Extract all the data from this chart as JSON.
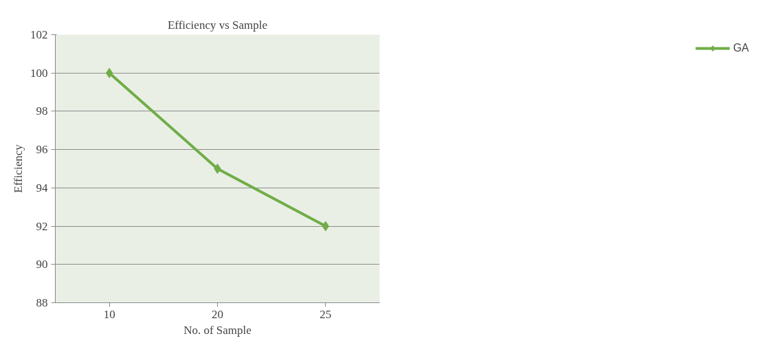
{
  "chart_data": {
    "type": "line",
    "title": "Efficiency vs Sample",
    "xlabel": "No. of Sample",
    "ylabel": "Efficiency",
    "categories": [
      "10",
      "20",
      "25"
    ],
    "series": [
      {
        "name": "GA",
        "color": "#70ad47",
        "values": [
          100,
          95,
          92
        ]
      }
    ],
    "ylim": [
      88,
      102
    ],
    "yticks": [
      88,
      90,
      92,
      94,
      96,
      98,
      100,
      102
    ],
    "grid": "y",
    "legend": "right",
    "marker": "diamond",
    "line_style": "solid"
  }
}
